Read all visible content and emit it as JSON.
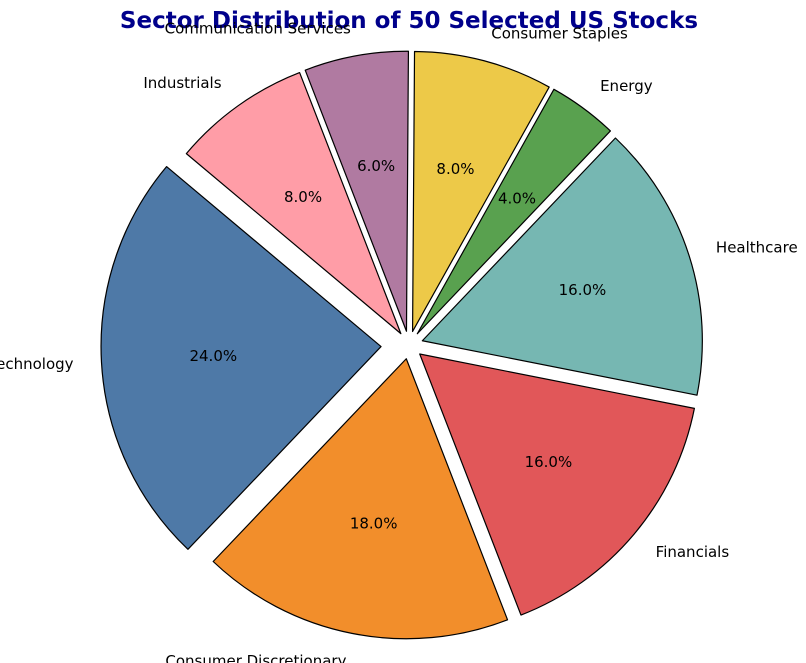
{
  "chart_data": {
    "type": "pie",
    "title": "Sector Distribution of 50 Selected US Stocks",
    "title_color": "#00008b",
    "start_angle_deg": 140,
    "direction": "counterclockwise",
    "edge_color": "#000000",
    "slices": [
      {
        "label": "Technology",
        "value": 24.0,
        "percent_label": "24.0%",
        "color": "#4e79a7",
        "explode": 0.1
      },
      {
        "label": "Consumer Discretionary",
        "value": 18.0,
        "percent_label": "18.0%",
        "color": "#f28e2b",
        "explode": 0.05
      },
      {
        "label": "Financials",
        "value": 16.0,
        "percent_label": "16.0%",
        "color": "#e15759",
        "explode": 0.05
      },
      {
        "label": "Healthcare",
        "value": 16.0,
        "percent_label": "16.0%",
        "color": "#76b7b2",
        "explode": 0.05
      },
      {
        "label": "Energy",
        "value": 4.0,
        "percent_label": "4.0%",
        "color": "#59a14f",
        "explode": 0.05
      },
      {
        "label": "Consumer Staples",
        "value": 8.0,
        "percent_label": "8.0%",
        "color": "#edc948",
        "explode": 0.05
      },
      {
        "label": "Communication Services",
        "value": 6.0,
        "percent_label": "6.0%",
        "color": "#b07aa1",
        "explode": 0.05
      },
      {
        "label": "Industrials",
        "value": 8.0,
        "percent_label": "8.0%",
        "color": "#ff9da7",
        "explode": 0.05
      }
    ]
  }
}
